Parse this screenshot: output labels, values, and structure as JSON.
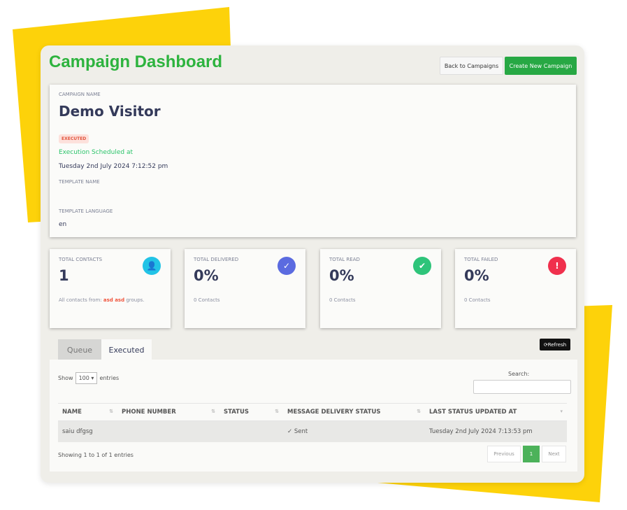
{
  "title": "Campaign Dashboard",
  "buttons": {
    "back": "Back to Campaigns",
    "create": "Create New Campaign",
    "refresh": "Refresh"
  },
  "campaign": {
    "name_label": "CAMPAIGN NAME",
    "name": "Demo Visitor",
    "status": "EXECUTED",
    "scheduled_label": "Execution Scheduled at",
    "scheduled_at": "Tuesday 2nd July 2024 7:12:52 pm",
    "template_name_label": "TEMPLATE NAME",
    "template_language_label": "TEMPLATE LANGUAGE",
    "template_language": "en"
  },
  "stats": [
    {
      "label": "TOTAL CONTACTS",
      "value": "1",
      "sub_pre": "All contacts from: ",
      "sub_hl": "asd asd",
      "sub_post": " groups.",
      "icon": "user-icon",
      "color": "#22c3e6"
    },
    {
      "label": "TOTAL DELIVERED",
      "value": "0%",
      "sub_pre": "0 Contacts",
      "icon": "check-icon",
      "color": "#5b6be0"
    },
    {
      "label": "TOTAL READ",
      "value": "0%",
      "sub_pre": "0 Contacts",
      "icon": "double-check-icon",
      "color": "#2ec47a"
    },
    {
      "label": "TOTAL FAILED",
      "value": "0%",
      "sub_pre": "0 Contacts",
      "icon": "alert-icon",
      "color": "#f0304d"
    }
  ],
  "tabs": [
    "Queue",
    "Executed"
  ],
  "table": {
    "show": "Show",
    "entries_value": "100",
    "entries": "entries",
    "search_label": "Search:",
    "search_value": "",
    "columns": [
      "NAME",
      "PHONE NUMBER",
      "STATUS",
      "MESSAGE DELIVERY STATUS",
      "LAST STATUS UPDATED AT"
    ],
    "rows": [
      [
        "saiu dfgsg",
        "",
        "",
        "✓ Sent",
        "Tuesday 2nd July 2024 7:13:53 pm"
      ]
    ],
    "info": "Showing 1 to 1 of 1 entries",
    "previous": "Previous",
    "page": "1",
    "next": "Next"
  }
}
